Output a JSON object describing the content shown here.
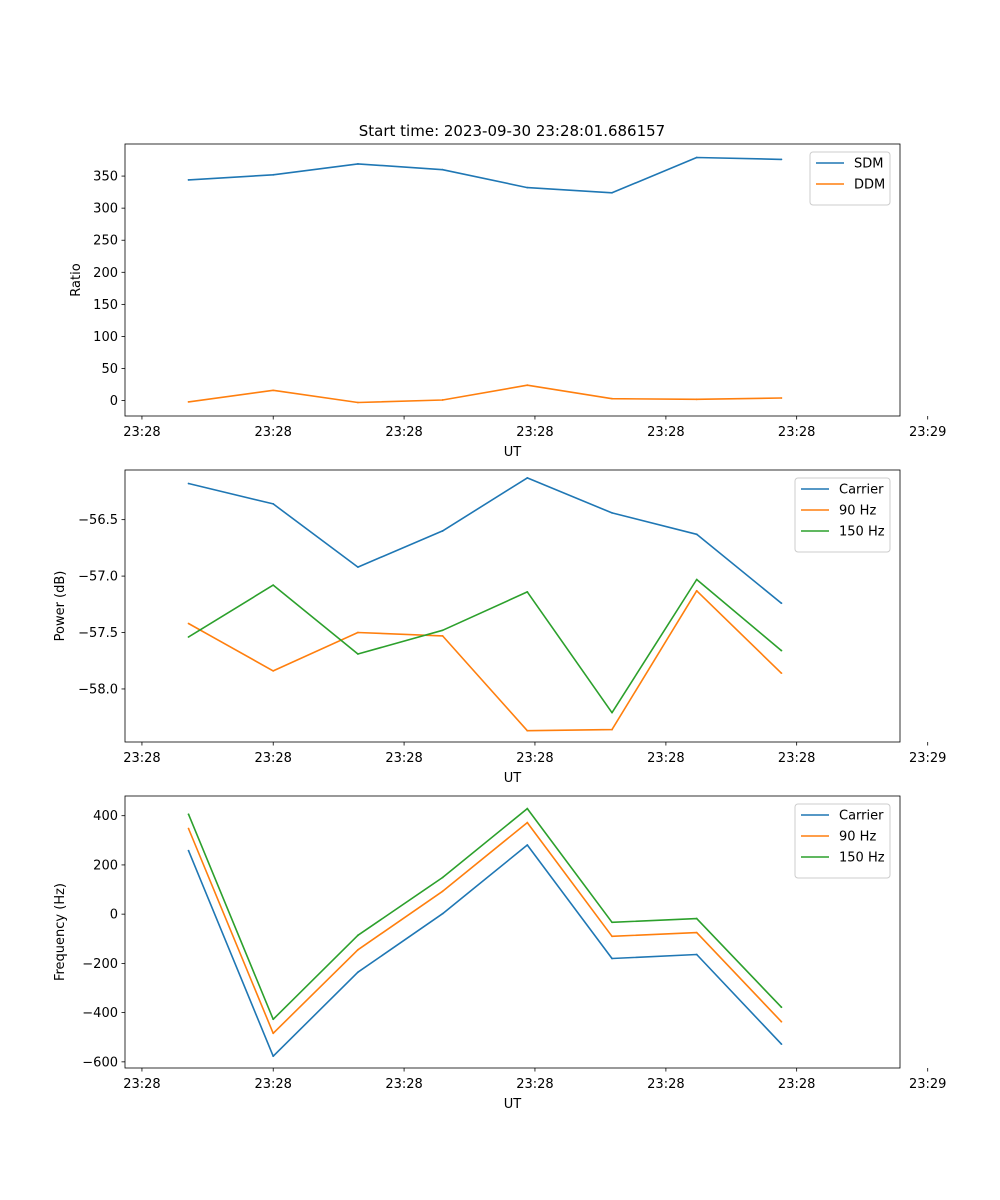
{
  "figure_title": "Start time: 2023-09-30 23:28:01.686157",
  "colors": {
    "blue": "#1f77b4",
    "orange": "#ff7f0e",
    "green": "#2ca02c"
  },
  "chart_data": [
    {
      "type": "line",
      "id": "ratio",
      "title": "Start time: 2023-09-30 23:28:01.686157",
      "xlabel": "UT",
      "ylabel": "Ratio",
      "x_ticks": [
        "23:28",
        "23:28",
        "23:28",
        "23:28",
        "23:28",
        "23:28",
        "23:29"
      ],
      "x_index": [
        1,
        2,
        3,
        4,
        5,
        6,
        7,
        8
      ],
      "xlim": [
        0.25,
        9.4
      ],
      "ylim": [
        -24,
        400
      ],
      "y_ticks": [
        0,
        50,
        100,
        150,
        200,
        250,
        300,
        350
      ],
      "legend": "top-right",
      "series": [
        {
          "name": "SDM",
          "color": "#1f77b4",
          "values": [
            344,
            352,
            369,
            360,
            332,
            324,
            379,
            376
          ]
        },
        {
          "name": "DDM",
          "color": "#ff7f0e",
          "values": [
            -2,
            16,
            -3,
            1,
            24,
            3,
            2,
            4
          ]
        }
      ]
    },
    {
      "type": "line",
      "id": "power",
      "xlabel": "UT",
      "ylabel": "Power (dB)",
      "x_ticks": [
        "23:28",
        "23:28",
        "23:28",
        "23:28",
        "23:28",
        "23:28",
        "23:29"
      ],
      "x_index": [
        1,
        2,
        3,
        4,
        5,
        6,
        7,
        8
      ],
      "xlim": [
        0.25,
        9.4
      ],
      "ylim": [
        -58.47,
        -56.06
      ],
      "y_ticks": [
        -58.0,
        -57.5,
        -57.0,
        -56.5
      ],
      "y_tick_labels": [
        "−58.0",
        "−57.5",
        "−57.0",
        "−56.5"
      ],
      "legend": "top-right",
      "series": [
        {
          "name": "Carrier",
          "color": "#1f77b4",
          "values": [
            -56.18,
            -56.36,
            -56.92,
            -56.6,
            -56.13,
            -56.44,
            -56.63,
            -57.24
          ]
        },
        {
          "name": "90 Hz",
          "color": "#ff7f0e",
          "values": [
            -57.42,
            -57.84,
            -57.5,
            -57.53,
            -58.37,
            -58.36,
            -57.13,
            -57.86
          ]
        },
        {
          "name": "150 Hz",
          "color": "#2ca02c",
          "values": [
            -57.54,
            -57.08,
            -57.69,
            -57.48,
            -57.14,
            -58.21,
            -57.03,
            -57.66
          ]
        }
      ]
    },
    {
      "type": "line",
      "id": "frequency",
      "xlabel": "UT",
      "ylabel": "Frequency (Hz)",
      "x_ticks": [
        "23:28",
        "23:28",
        "23:28",
        "23:28",
        "23:28",
        "23:28",
        "23:29"
      ],
      "x_index": [
        1,
        2,
        3,
        4,
        5,
        6,
        7,
        8
      ],
      "xlim": [
        0.25,
        9.4
      ],
      "ylim": [
        -625,
        480
      ],
      "y_ticks": [
        -600,
        -400,
        -200,
        0,
        200,
        400
      ],
      "y_tick_labels": [
        "−600",
        "−400",
        "−200",
        "0",
        "200",
        "400"
      ],
      "legend": "top-right",
      "series": [
        {
          "name": "Carrier",
          "color": "#1f77b4",
          "values": [
            258,
            -577,
            -236,
            2,
            281,
            -180,
            -164,
            -528
          ]
        },
        {
          "name": "90 Hz",
          "color": "#ff7f0e",
          "values": [
            348,
            -484,
            -145,
            93,
            372,
            -90,
            -75,
            -437
          ]
        },
        {
          "name": "150 Hz",
          "color": "#2ca02c",
          "values": [
            406,
            -427,
            -86,
            149,
            429,
            -33,
            -18,
            -378
          ]
        }
      ]
    }
  ]
}
